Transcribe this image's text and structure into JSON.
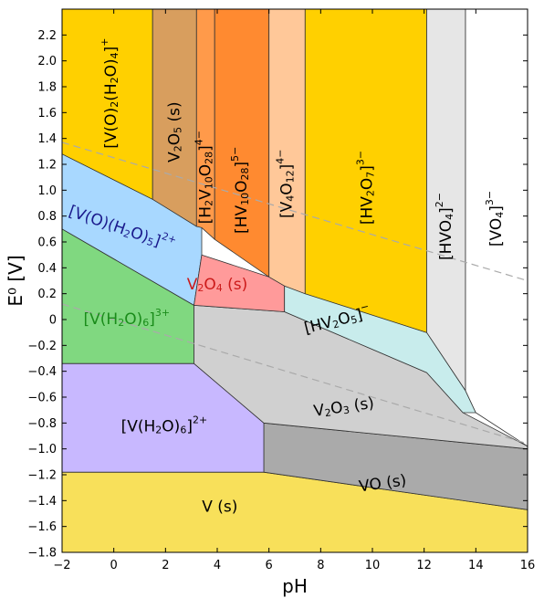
{
  "chart_data": {
    "type": "area",
    "title": "",
    "xlabel": "pH",
    "ylabel": "E⁰ [V]",
    "xlim": [
      -2,
      16
    ],
    "ylim": [
      -1.8,
      2.4
    ],
    "xticks": [
      -2,
      0,
      2,
      4,
      6,
      8,
      10,
      12,
      14,
      16
    ],
    "xtick_labels": [
      "−2",
      "0",
      "2",
      "4",
      "6",
      "8",
      "10",
      "12",
      "14",
      "16"
    ],
    "yticks": [
      -1.8,
      -1.6,
      -1.4,
      -1.2,
      -1.0,
      -0.8,
      -0.6,
      -0.4,
      -0.2,
      0,
      0.2,
      0.4,
      0.6,
      0.8,
      1.0,
      1.2,
      1.4,
      1.6,
      1.8,
      2.0,
      2.2
    ],
    "ytick_labels": [
      "−1.8",
      "−1.6",
      "−1.4",
      "−1.2",
      "−1.0",
      "−0.8",
      "−0.6",
      "−0.4",
      "−0.2",
      "0",
      "0.2",
      "0.4",
      "0.6",
      "0.8",
      "1.0",
      "1.2",
      "1.4",
      "1.6",
      "1.8",
      "2.0",
      "2.2"
    ],
    "regions": [
      {
        "label": "V (s)",
        "color": "#f8e05a",
        "polygon": [
          [
            -2,
            -1.8
          ],
          [
            16,
            -1.8
          ],
          [
            16,
            -1.47
          ],
          [
            5.8,
            -1.18
          ],
          [
            -2,
            -1.18
          ]
        ]
      },
      {
        "label": "VO (s)",
        "color": "#aaaaaa",
        "polygon": [
          [
            5.8,
            -1.18
          ],
          [
            16,
            -1.47
          ],
          [
            16,
            -1.0
          ],
          [
            5.8,
            -0.8
          ]
        ]
      },
      {
        "label": "[V(H2O)6]2+",
        "color": "#c8b8ff",
        "polygon": [
          [
            -2,
            -1.18
          ],
          [
            5.8,
            -1.18
          ],
          [
            5.8,
            -0.8
          ],
          [
            3.1,
            -0.34
          ],
          [
            -2,
            -0.34
          ]
        ]
      },
      {
        "label": "[V(H2O)6]3+",
        "color": "#80d880",
        "polygon": [
          [
            -2,
            -0.34
          ],
          [
            3.1,
            -0.34
          ],
          [
            3.1,
            0.11
          ],
          [
            -2,
            0.7
          ]
        ]
      },
      {
        "label": "V2O3 (s)",
        "color": "#d0d0d0",
        "polygon": [
          [
            3.1,
            -0.34
          ],
          [
            5.8,
            -0.8
          ],
          [
            16,
            -1.0
          ],
          [
            16,
            -0.98
          ],
          [
            13.5,
            -0.72
          ],
          [
            12.1,
            -0.41
          ],
          [
            6.6,
            0.06
          ],
          [
            3.1,
            0.11
          ]
        ]
      },
      {
        "label": "[V(O)(H2O)5]2+",
        "color": "#a8d8ff",
        "polygon": [
          [
            -2,
            0.7
          ],
          [
            3.1,
            0.11
          ],
          [
            3.4,
            0.5
          ],
          [
            3.4,
            0.71
          ],
          [
            1.5,
            0.93
          ],
          [
            -2,
            1.28
          ]
        ]
      },
      {
        "label": "V2O4 (s)",
        "color": "#ff9a9a",
        "polygon": [
          [
            3.4,
            0.5
          ],
          [
            6.0,
            0.33
          ],
          [
            6.6,
            0.26
          ],
          [
            6.6,
            0.06
          ],
          [
            3.1,
            0.11
          ]
        ]
      },
      {
        "label": "[HV2O5]−",
        "color": "#c8ecec",
        "polygon": [
          [
            6.6,
            0.06
          ],
          [
            6.6,
            0.26
          ],
          [
            12.1,
            -0.1
          ],
          [
            13.6,
            -0.55
          ],
          [
            14.0,
            -0.72
          ],
          [
            13.5,
            -0.72
          ],
          [
            12.1,
            -0.41
          ]
        ]
      },
      {
        "label": "[V(O)2(H2O)4]+",
        "color": "#ffd000",
        "polygon": [
          [
            -2,
            2.4
          ],
          [
            1.5,
            2.4
          ],
          [
            1.5,
            0.93
          ],
          [
            -2,
            1.28
          ]
        ]
      },
      {
        "label": "V2O5 (s)",
        "color": "#d89e5e",
        "polygon": [
          [
            1.5,
            2.4
          ],
          [
            3.2,
            2.4
          ],
          [
            3.2,
            0.72
          ],
          [
            1.5,
            0.93
          ]
        ]
      },
      {
        "label": "[H2V10O28]4−",
        "color": "#ff9a4a",
        "polygon": [
          [
            3.2,
            2.4
          ],
          [
            3.9,
            2.4
          ],
          [
            3.9,
            0.62
          ],
          [
            3.4,
            0.71
          ],
          [
            3.2,
            0.72
          ]
        ]
      },
      {
        "label": "[HV10O28]5−",
        "color": "#ff8a30",
        "polygon": [
          [
            3.9,
            2.4
          ],
          [
            6.0,
            2.4
          ],
          [
            6.0,
            0.33
          ],
          [
            3.9,
            0.62
          ]
        ]
      },
      {
        "label": "[V4O12]4−",
        "color": "#ffc899",
        "polygon": [
          [
            6.0,
            2.4
          ],
          [
            7.4,
            2.4
          ],
          [
            7.4,
            0.2
          ],
          [
            6.6,
            0.26
          ],
          [
            6.0,
            0.33
          ]
        ]
      },
      {
        "label": "[HV2O7]3−",
        "color": "#ffd000",
        "polygon": [
          [
            7.4,
            2.4
          ],
          [
            12.1,
            2.4
          ],
          [
            12.1,
            -0.1
          ],
          [
            7.4,
            0.2
          ]
        ]
      },
      {
        "label": "[HVO4]2−",
        "color": "#e6e6e6",
        "polygon": [
          [
            12.1,
            2.4
          ],
          [
            13.6,
            2.4
          ],
          [
            13.6,
            -0.55
          ],
          [
            12.1,
            -0.1
          ]
        ]
      },
      {
        "label": "[VO4]3−",
        "color": "#ffffff",
        "polygon": [
          [
            13.6,
            2.4
          ],
          [
            16,
            2.4
          ],
          [
            16,
            -0.98
          ],
          [
            14.0,
            -0.72
          ],
          [
            13.6,
            -0.55
          ]
        ]
      }
    ],
    "reference_lines": [
      {
        "style": "dashed",
        "color": "#aaaaaa",
        "points": [
          [
            -2,
            1.37
          ],
          [
            16,
            0.3
          ]
        ]
      },
      {
        "style": "dashed",
        "color": "#aaaaaa",
        "points": [
          [
            -2,
            0.12
          ],
          [
            16,
            -0.96
          ]
        ]
      }
    ],
    "region_labels": [
      {
        "parts": [
          [
            "t",
            "[V(O)"
          ],
          [
            "sub",
            "2"
          ],
          [
            "t",
            "(H"
          ],
          [
            "sub",
            "2"
          ],
          [
            "t",
            "O)"
          ],
          [
            "sub",
            "4"
          ],
          [
            "t",
            "]"
          ],
          [
            "sup",
            "+"
          ]
        ],
        "x": -0.1,
        "y": 1.75,
        "rotate": -90,
        "color": "#000000"
      },
      {
        "parts": [
          [
            "t",
            "V"
          ],
          [
            "sub",
            "2"
          ],
          [
            "t",
            "O"
          ],
          [
            "sub",
            "5"
          ],
          [
            "t",
            " (s)"
          ]
        ],
        "x": 2.35,
        "y": 1.45,
        "rotate": -90,
        "color": "#000000"
      },
      {
        "parts": [
          [
            "t",
            "[H"
          ],
          [
            "sub",
            "2"
          ],
          [
            "t",
            "V"
          ],
          [
            "sub",
            "10"
          ],
          [
            "t",
            "O"
          ],
          [
            "sub",
            "28"
          ],
          [
            "t",
            "]"
          ],
          [
            "sup",
            "4−"
          ]
        ],
        "x": 3.55,
        "y": 1.1,
        "rotate": -90,
        "color": "#000000"
      },
      {
        "parts": [
          [
            "t",
            "[HV"
          ],
          [
            "sub",
            "10"
          ],
          [
            "t",
            "O"
          ],
          [
            "sub",
            "28"
          ],
          [
            "t",
            "]"
          ],
          [
            "sup",
            "5−"
          ]
        ],
        "x": 4.95,
        "y": 1.0,
        "rotate": -90,
        "color": "#000000"
      },
      {
        "parts": [
          [
            "t",
            "[V"
          ],
          [
            "sub",
            "4"
          ],
          [
            "t",
            "O"
          ],
          [
            "sub",
            "12"
          ],
          [
            "t",
            "]"
          ],
          [
            "sup",
            "4−"
          ]
        ],
        "x": 6.7,
        "y": 1.05,
        "rotate": -90,
        "color": "#000000"
      },
      {
        "parts": [
          [
            "t",
            "[HV"
          ],
          [
            "sub",
            "2"
          ],
          [
            "t",
            "O"
          ],
          [
            "sub",
            "7"
          ],
          [
            "t",
            "]"
          ],
          [
            "sup",
            "3−"
          ]
        ],
        "x": 9.8,
        "y": 1.02,
        "rotate": -90,
        "color": "#000000"
      },
      {
        "parts": [
          [
            "t",
            "[HVO"
          ],
          [
            "sub",
            "4"
          ],
          [
            "t",
            "]"
          ],
          [
            "sup",
            "2−"
          ]
        ],
        "x": 12.85,
        "y": 0.72,
        "rotate": -90,
        "color": "#000000"
      },
      {
        "parts": [
          [
            "t",
            "[VO"
          ],
          [
            "sub",
            "4"
          ],
          [
            "t",
            "]"
          ],
          [
            "sup",
            "3−"
          ]
        ],
        "x": 14.8,
        "y": 0.78,
        "rotate": -90,
        "color": "#000000"
      },
      {
        "parts": [
          [
            "t",
            "[V(O)(H"
          ],
          [
            "sub",
            "2"
          ],
          [
            "t",
            "O)"
          ],
          [
            "sub",
            "5"
          ],
          [
            "t",
            "]"
          ],
          [
            "sup",
            "2+"
          ]
        ],
        "x": 0.3,
        "y": 0.7,
        "rotate": 19,
        "color": "#1a1a8c"
      },
      {
        "parts": [
          [
            "t",
            "V"
          ],
          [
            "sub",
            "2"
          ],
          [
            "t",
            "O"
          ],
          [
            "sub",
            "4"
          ],
          [
            "t",
            " (s)"
          ]
        ],
        "x": 4.0,
        "y": 0.27,
        "rotate": 0,
        "color": "#cc1a1a"
      },
      {
        "parts": [
          [
            "t",
            "[V(H"
          ],
          [
            "sub",
            "2"
          ],
          [
            "t",
            "O)"
          ],
          [
            "sub",
            "6"
          ],
          [
            "t",
            "]"
          ],
          [
            "sup",
            "3+"
          ]
        ],
        "x": 0.5,
        "y": 0.0,
        "rotate": 0,
        "color": "#1a8c1a"
      },
      {
        "parts": [
          [
            "t",
            "[HV"
          ],
          [
            "sub",
            "2"
          ],
          [
            "t",
            "O"
          ],
          [
            "sub",
            "5"
          ],
          [
            "t",
            "]"
          ],
          [
            "sup",
            "−"
          ]
        ],
        "x": 8.65,
        "y": -0.01,
        "rotate": -14,
        "color": "#000000"
      },
      {
        "parts": [
          [
            "t",
            "V"
          ],
          [
            "sub",
            "2"
          ],
          [
            "t",
            "O"
          ],
          [
            "sub",
            "3"
          ],
          [
            "t",
            " (s)"
          ]
        ],
        "x": 8.9,
        "y": -0.68,
        "rotate": -8,
        "color": "#000000"
      },
      {
        "parts": [
          [
            "t",
            "[V(H"
          ],
          [
            "sub",
            "2"
          ],
          [
            "t",
            "O)"
          ],
          [
            "sub",
            "6"
          ],
          [
            "t",
            "]"
          ],
          [
            "sup",
            "2+"
          ]
        ],
        "x": 1.95,
        "y": -0.83,
        "rotate": 0,
        "color": "#000000"
      },
      {
        "parts": [
          [
            "t",
            "VO (s)"
          ]
        ],
        "x": 10.4,
        "y": -1.27,
        "rotate": -8,
        "color": "#000000"
      },
      {
        "parts": [
          [
            "t",
            "V (s)"
          ]
        ],
        "x": 4.1,
        "y": -1.45,
        "rotate": 0,
        "color": "#000000"
      }
    ],
    "grid": false,
    "legend": "none"
  }
}
